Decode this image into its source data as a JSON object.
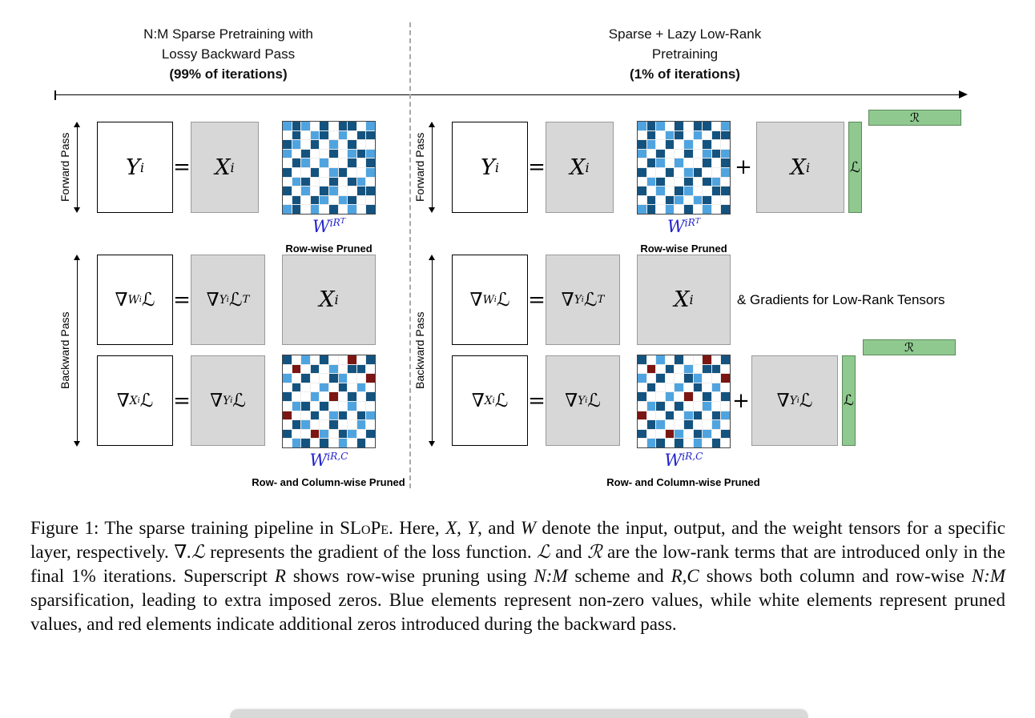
{
  "diagram": {
    "left": {
      "title_line1": "N:M Sparse Pretraining with",
      "title_line2": "Lossy Backward Pass",
      "title_line3": "(99% of iterations)"
    },
    "right": {
      "title_line1": "Sparse + Lazy Low-Rank",
      "title_line2": "Pretraining",
      "title_line3": "(1% of iterations)"
    },
    "forward_label": "Forward Pass",
    "backward_label": "Backward Pass",
    "equals": "=",
    "plus": "+",
    "lowrank_L": "ℒ",
    "lowrank_R": "ℛ",
    "gradients_note": "& Gradients for Low-Rank Tensors",
    "rowwise_pruned": "Row-wise Pruned",
    "rowcol_pruned": "Row- and Column-wise Pruned",
    "math": {
      "y_i": [
        {
          "t": "Y",
          "k": "cal"
        },
        {
          "t": "i",
          "k": "sub"
        }
      ],
      "x_i": [
        {
          "t": "X",
          "k": "cal"
        },
        {
          "t": "i",
          "k": "sub"
        }
      ],
      "w_rt": [
        {
          "t": "W",
          "k": "cal"
        },
        {
          "t": "i",
          "k": "sub"
        },
        {
          "t": "R",
          "k": "sup"
        },
        {
          "t": "T",
          "k": "sup2"
        }
      ],
      "w_rc": [
        {
          "t": "W",
          "k": "cal"
        },
        {
          "t": "i",
          "k": "sub"
        },
        {
          "t": "R,C",
          "k": "sup"
        }
      ],
      "grad_w": [
        {
          "t": "∇"
        },
        {
          "t": "W",
          "k": "sub"
        },
        {
          "t": "i",
          "k": "ssub"
        },
        {
          "t": "ℒ"
        }
      ],
      "grad_yT": [
        {
          "t": "∇"
        },
        {
          "t": "Y",
          "k": "sub"
        },
        {
          "t": "i",
          "k": "ssub"
        },
        {
          "t": "ℒ"
        },
        {
          "t": "T",
          "k": "sup"
        }
      ],
      "grad_y": [
        {
          "t": "∇"
        },
        {
          "t": "Y",
          "k": "sub"
        },
        {
          "t": "i",
          "k": "ssub"
        },
        {
          "t": "ℒ"
        }
      ],
      "grad_x": [
        {
          "t": "∇"
        },
        {
          "t": "X",
          "k": "sub"
        },
        {
          "t": "i",
          "k": "ssub"
        },
        {
          "t": "ℒ"
        }
      ]
    },
    "colors": {
      "dark_blue": "#14537F",
      "light_blue": "#4FA4E0",
      "dark_red": "#7B1613",
      "gray_box": "#D7D7D7",
      "green_bar": "#8FC98F",
      "math_label_blue": "#2222CC"
    }
  },
  "grids": {
    "cell_colors": {
      ".": "#FFFFFF",
      "d": "#14537F",
      "l": "#4FA4E0",
      "r": "#7B1613"
    },
    "rowwise": [
      "ldl.d.dd.l",
      ".d.ld.l.dd",
      "dl.d.l.d..",
      "l.d..d.ldl",
      ".dl.l..d.d",
      "d..d.ld..l",
      ".ld..d.dl.",
      "d.l.dl..dd",
      ".d.dl.ld..",
      "ld.l.d.l.d"
    ],
    "rowcol": [
      "d.l.d..r.d",
      ".r.d.l.dd.",
      "l.d..dl..r",
      ".d..l.d.l.",
      "d..l.r.d.d",
      ".ld.d..l..",
      "r..d.ld.dl",
      ".dl..d..l.",
      "d..rl.dl.d",
      ".ld.d.l.d."
    ]
  },
  "caption": {
    "segments": [
      {
        "t": "Figure 1: The sparse training pipeline in "
      },
      {
        "t": "SLoPe",
        "k": "sc"
      },
      {
        "t": ". Here, "
      },
      {
        "t": "X",
        "k": "cal"
      },
      {
        "t": ", "
      },
      {
        "t": "Y",
        "k": "cal"
      },
      {
        "t": ", and "
      },
      {
        "t": "W",
        "k": "cal"
      },
      {
        "t": " denote the input, output, and the weight tensors for a specific layer, respectively. "
      },
      {
        "t": "∇.ℒ",
        "k": "it"
      },
      {
        "t": " represents the gradient of the loss function. "
      },
      {
        "t": "ℒ",
        "k": "it"
      },
      {
        "t": " and "
      },
      {
        "t": "ℛ",
        "k": "it"
      },
      {
        "t": " are the low-rank terms that are introduced only in the final 1% iterations.  Superscript "
      },
      {
        "t": "R",
        "k": "it"
      },
      {
        "t": " shows row-wise pruning using "
      },
      {
        "t": "N:M",
        "k": "it"
      },
      {
        "t": " scheme and "
      },
      {
        "t": "R,C",
        "k": "it"
      },
      {
        "t": " shows both column and row-wise "
      },
      {
        "t": "N:M",
        "k": "it"
      },
      {
        "t": " sparsification, leading to extra imposed zeros. Blue elements represent non-zero values, while white elements represent pruned values, and red elements indicate additional zeros introduced during the backward pass."
      }
    ]
  }
}
